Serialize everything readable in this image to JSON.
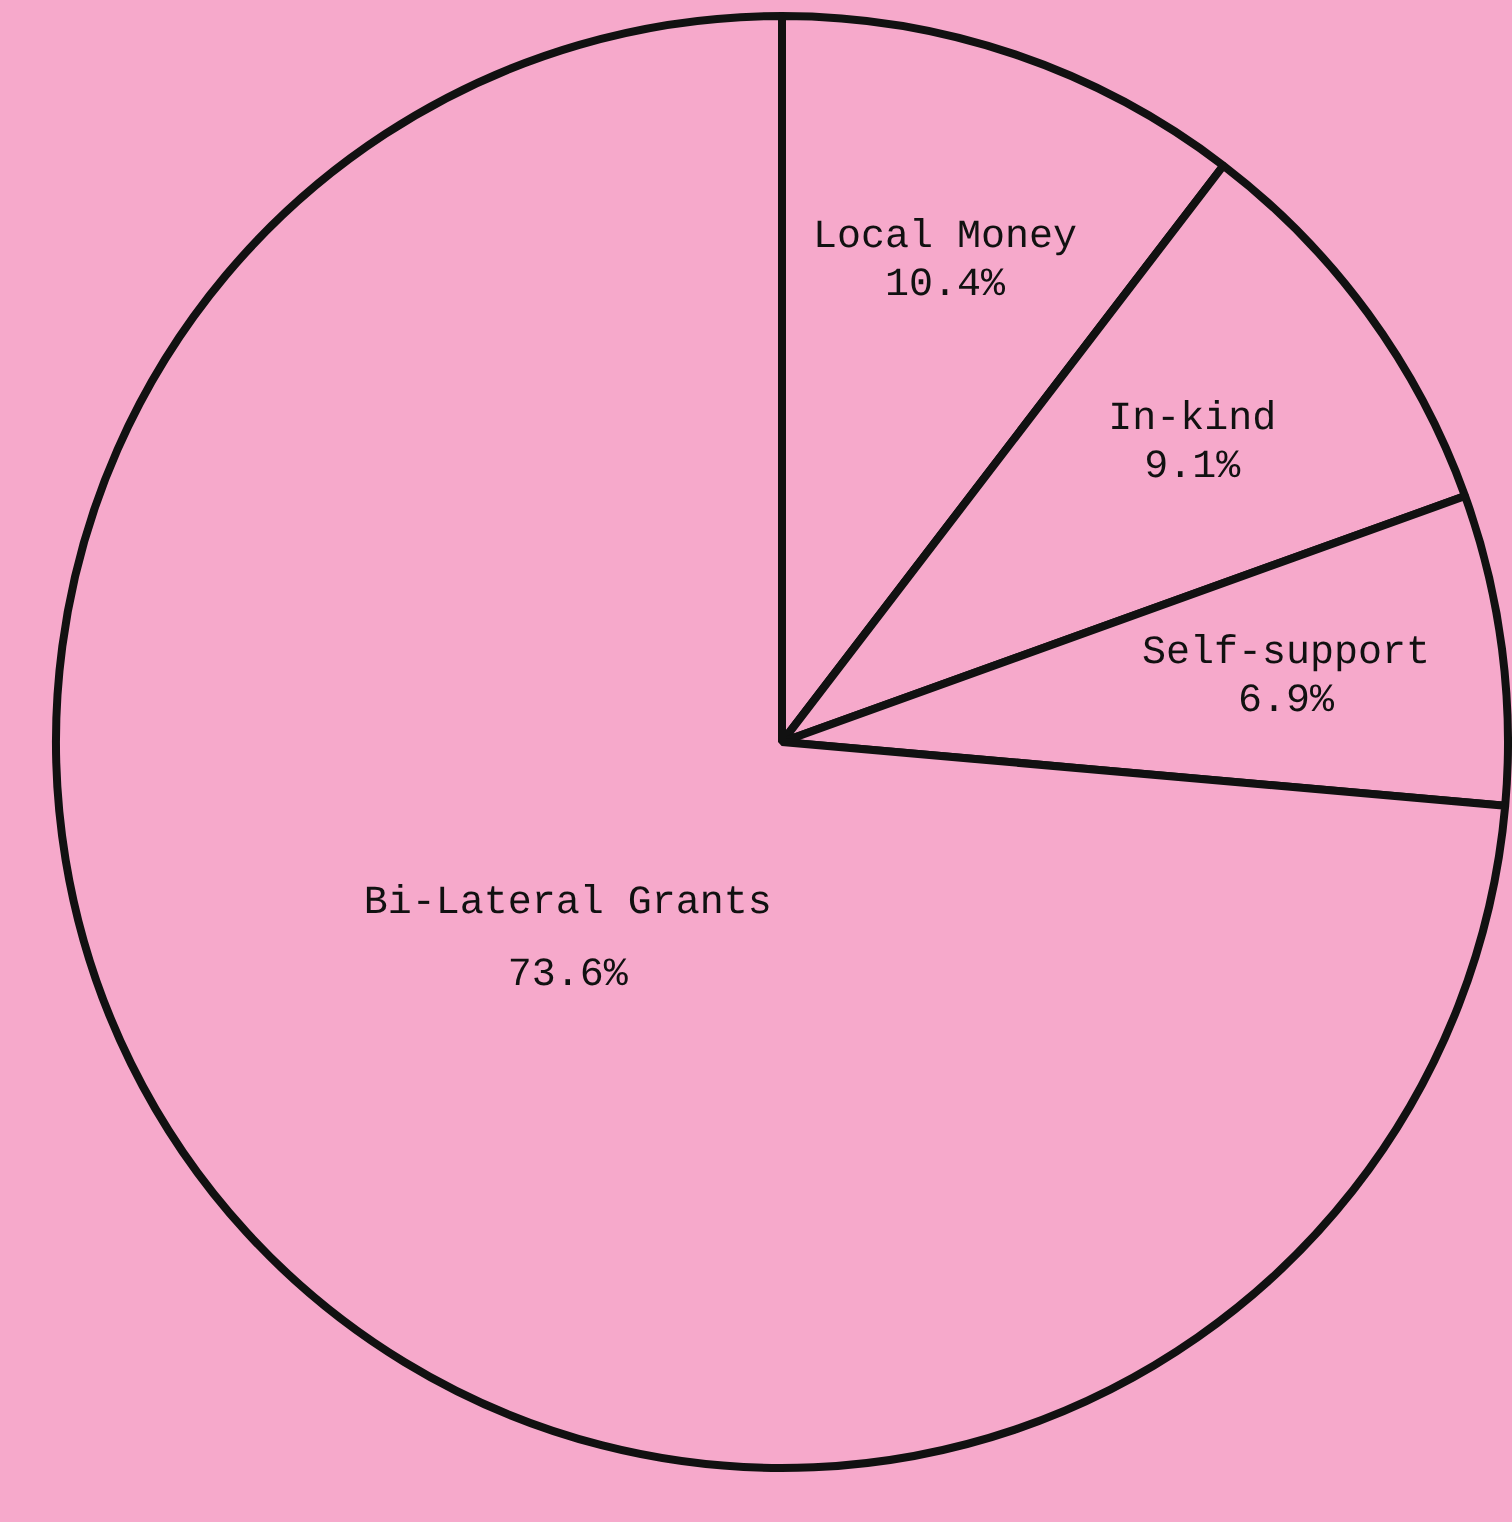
{
  "chart_data": {
    "type": "pie",
    "categories": [
      "Local Money",
      "In-kind",
      "Self-support",
      "Bi-Lateral Grants"
    ],
    "values": [
      10.4,
      9.1,
      6.9,
      73.6
    ],
    "value_labels": [
      "10.4%",
      "9.1%",
      "6.9%",
      "73.6%"
    ],
    "colors": [
      "#f6a9cb",
      "#f6a9cb",
      "#f6a9cb",
      "#f6a9cb"
    ],
    "legend": false
  }
}
